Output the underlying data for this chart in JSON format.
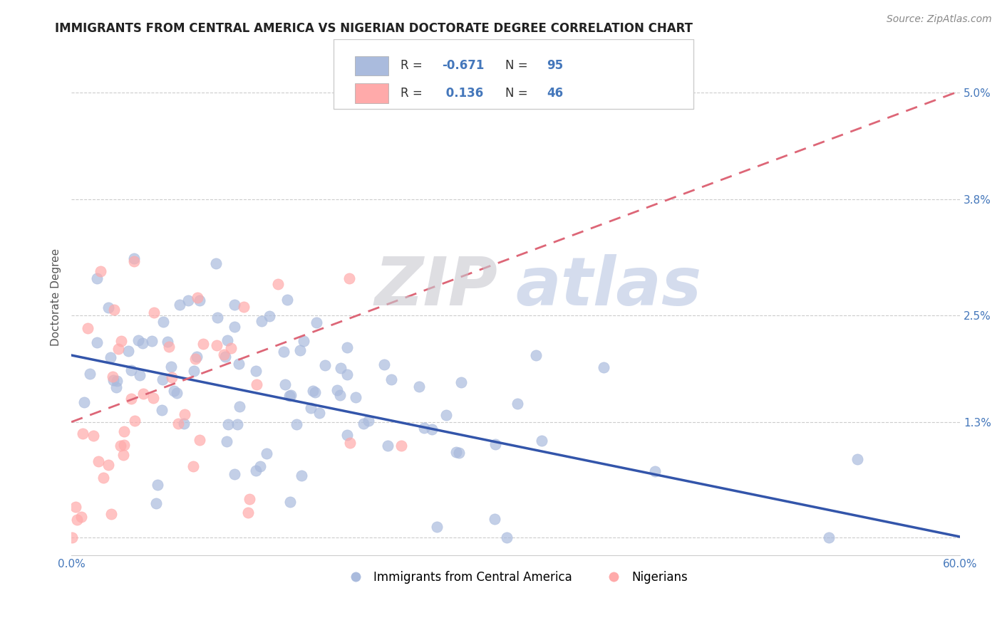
{
  "title": "IMMIGRANTS FROM CENTRAL AMERICA VS NIGERIAN DOCTORATE DEGREE CORRELATION CHART",
  "source_text": "Source: ZipAtlas.com",
  "xlabel": "",
  "ylabel": "Doctorate Degree",
  "xlim": [
    0.0,
    0.6
  ],
  "ylim": [
    -0.002,
    0.056
  ],
  "yticks": [
    0.0,
    0.013,
    0.025,
    0.038,
    0.05
  ],
  "ytick_labels": [
    "",
    "1.3%",
    "2.5%",
    "3.8%",
    "5.0%"
  ],
  "xticks": [
    0.0,
    0.1,
    0.2,
    0.3,
    0.4,
    0.5,
    0.6
  ],
  "xtick_labels": [
    "0.0%",
    "",
    "",
    "",
    "",
    "",
    "60.0%"
  ],
  "blue_R": -0.671,
  "blue_N": 95,
  "pink_R": 0.136,
  "pink_N": 46,
  "blue_line_color": "#3355AA",
  "pink_line_color": "#DD6677",
  "blue_scatter_color": "#AABBDD",
  "pink_scatter_color": "#FFAAAA",
  "legend_label_blue": "Immigrants from Central America",
  "legend_label_pink": "Nigerians",
  "watermark": "ZIPatlas",
  "background_color": "#FFFFFF",
  "grid_color": "#CCCCCC",
  "title_color": "#222222",
  "axis_label_color": "#555555",
  "tick_color": "#4477BB",
  "blue_seed": 42,
  "pink_seed": 7,
  "blue_line_intercept": 0.0205,
  "blue_line_slope": -0.034,
  "pink_line_intercept": 0.013,
  "pink_line_slope": 0.062
}
